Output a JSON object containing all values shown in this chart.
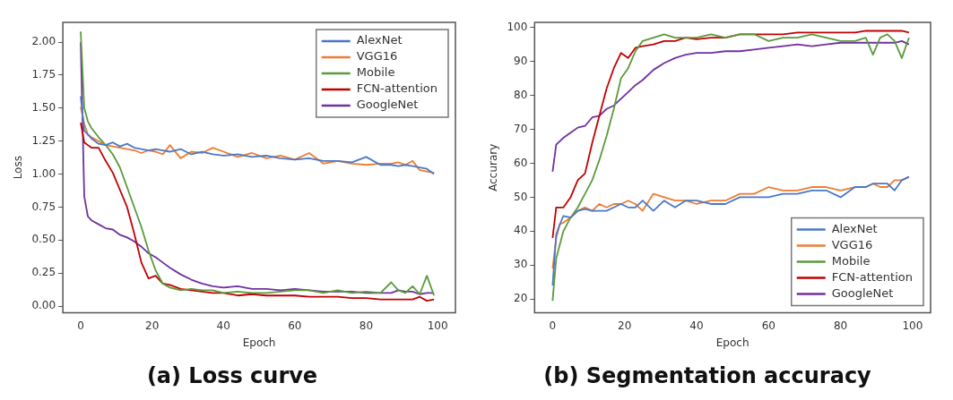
{
  "chart_data": [
    {
      "type": "line",
      "title": "(a) Loss curve",
      "xlabel": "Epoch",
      "ylabel": "Loss",
      "xlim": [
        -5,
        105
      ],
      "xticks": [
        0,
        20,
        40,
        60,
        80,
        100
      ],
      "ylim": [
        -0.05,
        2.15
      ],
      "yticks": [
        {
          "value": 0,
          "label": "0.00"
        },
        {
          "value": 0.25,
          "label": "0.25"
        },
        {
          "value": 0.5,
          "label": "0.50"
        },
        {
          "value": 0.75,
          "label": "0.75"
        },
        {
          "value": 1,
          "label": "1.00"
        },
        {
          "value": 1.25,
          "label": "1.25"
        },
        {
          "value": 1.5,
          "label": "1.50"
        },
        {
          "value": 1.75,
          "label": "1.75"
        },
        {
          "value": 2,
          "label": "2.00"
        }
      ],
      "grid": false,
      "legend": "top right",
      "marker": "none",
      "line_style": "solid",
      "x": [
        0,
        1,
        2,
        3,
        5,
        7,
        9,
        11,
        13,
        15,
        17,
        19,
        21,
        23,
        25,
        28,
        31,
        34,
        37,
        40,
        44,
        48,
        52,
        56,
        60,
        64,
        68,
        72,
        76,
        80,
        84,
        87,
        89,
        91,
        93,
        95,
        97,
        99
      ],
      "series": [
        {
          "name": "AlexNet",
          "color": "#4a78c8",
          "values": [
            1.59,
            1.33,
            1.3,
            1.27,
            1.23,
            1.22,
            1.24,
            1.21,
            1.23,
            1.2,
            1.19,
            1.18,
            1.19,
            1.18,
            1.17,
            1.19,
            1.15,
            1.17,
            1.15,
            1.14,
            1.15,
            1.13,
            1.14,
            1.12,
            1.11,
            1.12,
            1.1,
            1.1,
            1.09,
            1.13,
            1.07,
            1.07,
            1.06,
            1.07,
            1.06,
            1.05,
            1.04,
            1.0
          ]
        },
        {
          "name": "VGG16",
          "color": "#ed7d31",
          "values": [
            1.51,
            1.38,
            1.3,
            1.28,
            1.25,
            1.22,
            1.21,
            1.2,
            1.19,
            1.18,
            1.16,
            1.18,
            1.17,
            1.15,
            1.22,
            1.12,
            1.17,
            1.16,
            1.2,
            1.17,
            1.13,
            1.16,
            1.12,
            1.14,
            1.11,
            1.16,
            1.08,
            1.1,
            1.08,
            1.07,
            1.08,
            1.08,
            1.09,
            1.07,
            1.1,
            1.03,
            1.02,
            1.01
          ]
        },
        {
          "name": "Mobile",
          "color": "#5a9a3c",
          "values": [
            2.08,
            1.5,
            1.4,
            1.35,
            1.28,
            1.22,
            1.15,
            1.05,
            0.9,
            0.75,
            0.6,
            0.42,
            0.27,
            0.17,
            0.14,
            0.12,
            0.13,
            0.12,
            0.12,
            0.1,
            0.11,
            0.1,
            0.1,
            0.11,
            0.12,
            0.12,
            0.1,
            0.12,
            0.1,
            0.11,
            0.1,
            0.18,
            0.12,
            0.1,
            0.15,
            0.09,
            0.23,
            0.08
          ]
        },
        {
          "name": "FCN-attention",
          "color": "#c00000",
          "values": [
            1.39,
            1.24,
            1.22,
            1.2,
            1.2,
            1.1,
            1.01,
            0.88,
            0.75,
            0.55,
            0.33,
            0.21,
            0.23,
            0.17,
            0.16,
            0.13,
            0.12,
            0.11,
            0.1,
            0.1,
            0.08,
            0.09,
            0.08,
            0.08,
            0.08,
            0.07,
            0.07,
            0.07,
            0.06,
            0.06,
            0.05,
            0.05,
            0.05,
            0.05,
            0.05,
            0.07,
            0.04,
            0.05
          ]
        },
        {
          "name": "GoogleNet",
          "color": "#7030a0",
          "values": [
            2.0,
            0.83,
            0.68,
            0.65,
            0.62,
            0.59,
            0.58,
            0.54,
            0.52,
            0.49,
            0.45,
            0.4,
            0.37,
            0.33,
            0.29,
            0.24,
            0.2,
            0.17,
            0.15,
            0.14,
            0.15,
            0.13,
            0.13,
            0.12,
            0.13,
            0.12,
            0.11,
            0.11,
            0.11,
            0.1,
            0.1,
            0.1,
            0.12,
            0.11,
            0.11,
            0.09,
            0.1,
            0.1
          ]
        }
      ]
    },
    {
      "type": "line",
      "title": "(b) Segmentation accuracy",
      "xlabel": "Epoch",
      "ylabel": "Accurary",
      "xlim": [
        -5,
        105
      ],
      "xticks": [
        0,
        20,
        40,
        60,
        80,
        100
      ],
      "ylim": [
        16,
        101.5
      ],
      "yticks": [
        20,
        30,
        40,
        50,
        60,
        70,
        80,
        90,
        100
      ],
      "grid": false,
      "legend": "bottom right",
      "marker": "none",
      "line_style": "solid",
      "x": [
        0,
        1,
        2,
        3,
        5,
        7,
        9,
        11,
        13,
        15,
        17,
        19,
        21,
        23,
        25,
        28,
        31,
        34,
        37,
        40,
        44,
        48,
        52,
        56,
        60,
        64,
        68,
        72,
        76,
        80,
        84,
        87,
        89,
        91,
        93,
        95,
        97,
        99
      ],
      "series": [
        {
          "name": "AlexNet",
          "color": "#4a78c8",
          "values": [
            24,
            39,
            42,
            44.5,
            44,
            46,
            46.5,
            46,
            46,
            46,
            47,
            48,
            47,
            47,
            49,
            46,
            49,
            47,
            49,
            49,
            48,
            48,
            50,
            50,
            50,
            51,
            51,
            52,
            52,
            50,
            53,
            53,
            54,
            54,
            54,
            52,
            55,
            56
          ]
        },
        {
          "name": "VGG16",
          "color": "#ed7d31",
          "values": [
            29,
            38,
            42,
            42.5,
            44,
            46,
            47,
            46,
            48,
            47,
            48,
            48,
            49,
            48,
            46,
            51,
            50,
            49,
            49,
            48,
            49,
            49,
            51,
            51,
            53,
            52,
            52,
            53,
            53,
            52,
            53,
            53,
            54,
            53,
            53,
            55,
            55,
            56
          ]
        },
        {
          "name": "Mobile",
          "color": "#5a9a3c",
          "values": [
            19.5,
            32,
            36,
            40,
            44,
            47,
            51,
            55,
            61,
            68,
            76,
            85,
            88,
            93,
            96,
            97,
            98,
            97,
            97,
            97,
            98,
            97,
            98,
            98,
            96,
            97,
            97,
            98,
            97,
            96,
            96,
            97,
            92,
            97,
            98,
            96,
            91,
            97
          ]
        },
        {
          "name": "FCN-attention",
          "color": "#c00000",
          "values": [
            38,
            47,
            47,
            47,
            50,
            55,
            57,
            66,
            74,
            82,
            88,
            92.5,
            91,
            94,
            94.5,
            95,
            96,
            96,
            97,
            96.5,
            97,
            97,
            98,
            98,
            98,
            98,
            98.5,
            98.5,
            98.5,
            98.5,
            98.5,
            99,
            99,
            99,
            99,
            99,
            99,
            98.5
          ]
        },
        {
          "name": "GoogleNet",
          "color": "#7030a0",
          "values": [
            57.5,
            65.5,
            66.5,
            67.5,
            69,
            70.5,
            71,
            73.5,
            74,
            76,
            77,
            79,
            81,
            83,
            84.5,
            87.5,
            89.5,
            91,
            92,
            92.5,
            92.5,
            93,
            93,
            93.5,
            94,
            94.5,
            95,
            94.5,
            95,
            95.5,
            95.5,
            95.5,
            95.5,
            95.5,
            95.5,
            95.5,
            96,
            95
          ]
        }
      ]
    }
  ]
}
